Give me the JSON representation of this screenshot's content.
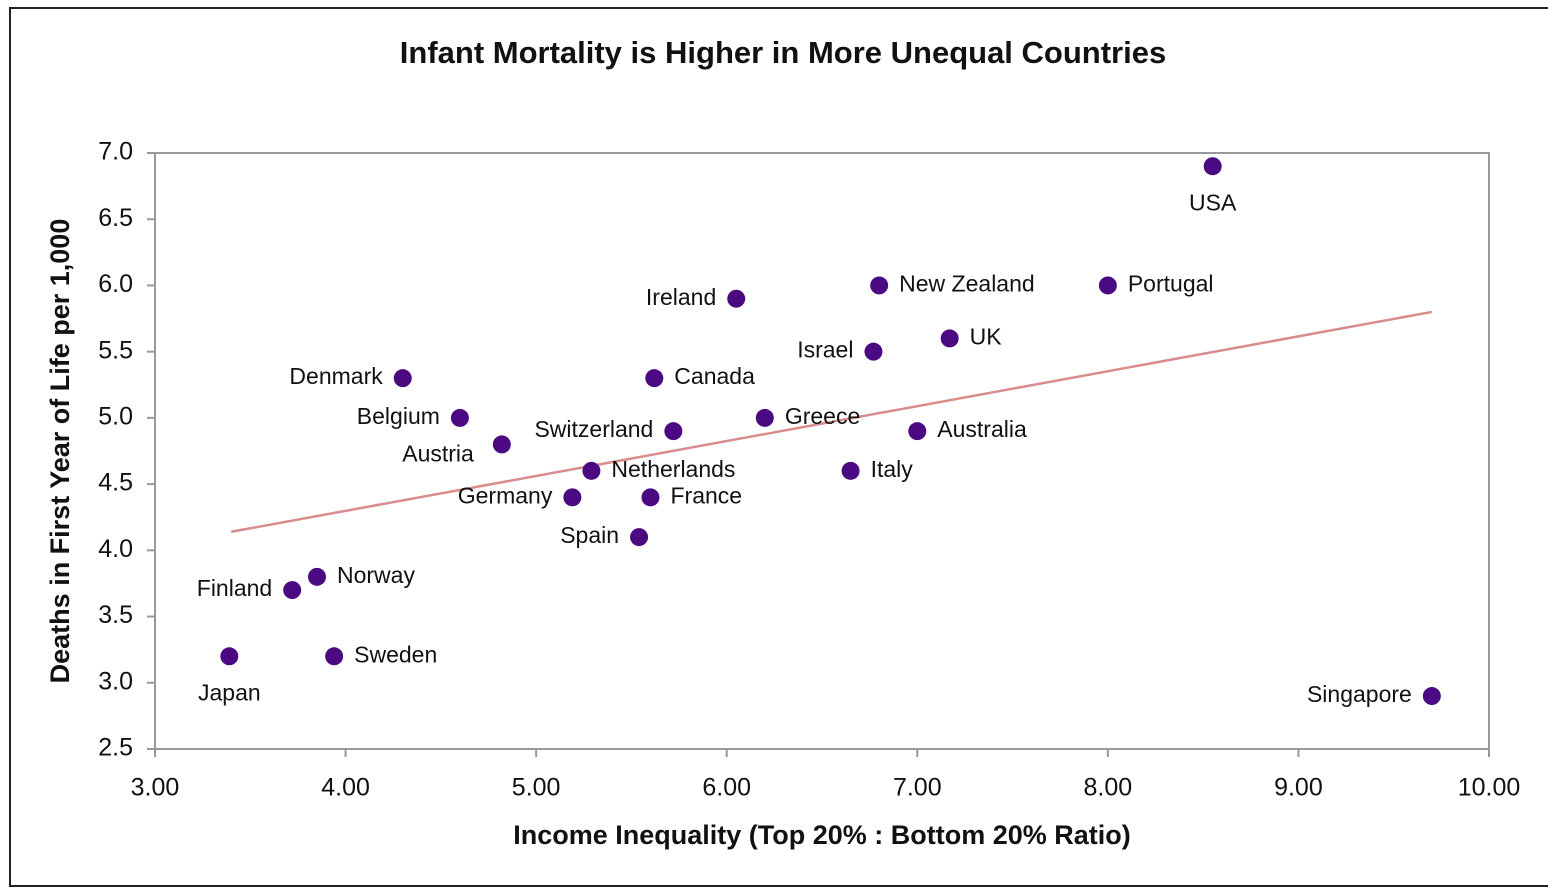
{
  "chart_data": {
    "type": "scatter",
    "title": "Infant Mortality is Higher in More Unequal Countries",
    "xlabel": "Income Inequality (Top 20% : Bottom 20%  Ratio)",
    "ylabel": "Deaths in First Year of Life per 1,000",
    "labels": [
      "USA",
      "Singapore",
      "Portugal",
      "New Zealand",
      "Ireland",
      "UK",
      "Israel",
      "Canada",
      "Denmark",
      "Belgium",
      "Greece",
      "Switzerland",
      "Australia",
      "Austria",
      "Netherlands",
      "Italy",
      "Germany",
      "France",
      "Spain",
      "Norway",
      "Finland",
      "Japan",
      "Sweden"
    ],
    "x": [
      8.55,
      9.7,
      8.0,
      6.8,
      6.05,
      7.17,
      6.77,
      5.62,
      4.3,
      4.6,
      6.2,
      5.72,
      7.0,
      4.82,
      5.29,
      6.65,
      5.19,
      5.6,
      5.54,
      3.85,
      3.72,
      3.39,
      3.94
    ],
    "y": [
      6.9,
      2.9,
      6.0,
      6.0,
      5.9,
      5.6,
      5.5,
      5.3,
      5.3,
      5.0,
      5.0,
      4.9,
      4.9,
      4.8,
      4.6,
      4.6,
      4.4,
      4.4,
      4.1,
      3.8,
      3.7,
      3.2,
      3.2
    ],
    "color": "#4b0a82",
    "trendline": {
      "x": [
        3.4,
        9.7
      ],
      "y": [
        4.14,
        5.8
      ],
      "color": "#d98c8c"
    },
    "xlim": [
      3,
      10
    ],
    "xticks": [
      {
        "value": 3,
        "label": "3.00"
      },
      {
        "value": 4,
        "label": "4.00"
      },
      {
        "value": 5,
        "label": "5.00"
      },
      {
        "value": 6,
        "label": "6.00"
      },
      {
        "value": 7,
        "label": "7.00"
      },
      {
        "value": 8,
        "label": "8.00"
      },
      {
        "value": 9,
        "label": "9.00"
      },
      {
        "value": 10,
        "label": "10.00"
      }
    ],
    "ylim": [
      2.5,
      7
    ],
    "yticks": [
      2.5,
      {
        "value": 3,
        "label": "3.0"
      },
      3.5,
      {
        "value": 4,
        "label": "4.0"
      },
      4.5,
      {
        "value": 5,
        "label": "5.0"
      },
      5.5,
      {
        "value": 6,
        "label": "6.0"
      },
      6.5,
      {
        "value": 7,
        "label": "7.0"
      }
    ]
  }
}
